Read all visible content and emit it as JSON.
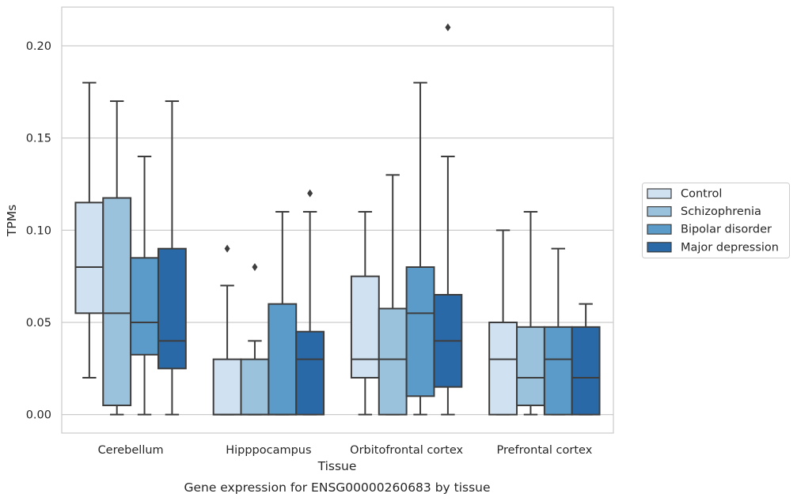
{
  "chart_data": {
    "type": "box",
    "xlabel": "Tissue",
    "ylabel": "TPMs",
    "caption": "Gene expression for ENSG00000260683 by tissue",
    "ylim": [
      -0.01,
      0.221
    ],
    "yticks": [
      "0.00",
      "0.05",
      "0.10",
      "0.15",
      "0.20"
    ],
    "ytick_values": [
      0.0,
      0.05,
      0.1,
      0.15,
      0.2
    ],
    "categories": [
      "Cerebellum",
      "Hipppocampus",
      "Orbitofrontal cortex",
      "Prefrontal cortex"
    ],
    "grid": true,
    "legend_position": "right",
    "series": [
      {
        "name": "Control",
        "color": "#d0e1f2",
        "boxes": [
          {
            "whislo": 0.02,
            "q1": 0.055,
            "med": 0.08,
            "q3": 0.115,
            "whishi": 0.18,
            "fliers": []
          },
          {
            "whislo": 0.0,
            "q1": 0.0,
            "med": 0.0,
            "q3": 0.03,
            "whishi": 0.07,
            "fliers": [
              0.09
            ]
          },
          {
            "whislo": 0.0,
            "q1": 0.02,
            "med": 0.03,
            "q3": 0.075,
            "whishi": 0.11,
            "fliers": []
          },
          {
            "whislo": 0.0,
            "q1": 0.0,
            "med": 0.03,
            "q3": 0.05,
            "whishi": 0.1,
            "fliers": []
          }
        ]
      },
      {
        "name": "Schizophrenia",
        "color": "#9ac2dd",
        "boxes": [
          {
            "whislo": 0.0,
            "q1": 0.005,
            "med": 0.055,
            "q3": 0.1175,
            "whishi": 0.17,
            "fliers": []
          },
          {
            "whislo": 0.0,
            "q1": 0.0,
            "med": 0.0,
            "q3": 0.03,
            "whishi": 0.04,
            "fliers": [
              0.08
            ]
          },
          {
            "whislo": 0.0,
            "q1": 0.0,
            "med": 0.03,
            "q3": 0.0575,
            "whishi": 0.13,
            "fliers": []
          },
          {
            "whislo": 0.0,
            "q1": 0.005,
            "med": 0.02,
            "q3": 0.0475,
            "whishi": 0.11,
            "fliers": []
          }
        ]
      },
      {
        "name": "Bipolar disorder",
        "color": "#5a9bc9",
        "boxes": [
          {
            "whislo": 0.0,
            "q1": 0.0325,
            "med": 0.05,
            "q3": 0.085,
            "whishi": 0.14,
            "fliers": []
          },
          {
            "whislo": 0.0,
            "q1": 0.0,
            "med": 0.0,
            "q3": 0.06,
            "whishi": 0.11,
            "fliers": []
          },
          {
            "whislo": 0.0,
            "q1": 0.01,
            "med": 0.055,
            "q3": 0.08,
            "whishi": 0.18,
            "fliers": []
          },
          {
            "whislo": 0.0,
            "q1": 0.0,
            "med": 0.03,
            "q3": 0.0475,
            "whishi": 0.09,
            "fliers": []
          }
        ]
      },
      {
        "name": "Major depression",
        "color": "#2a69a8",
        "boxes": [
          {
            "whislo": 0.0,
            "q1": 0.025,
            "med": 0.04,
            "q3": 0.09,
            "whishi": 0.17,
            "fliers": []
          },
          {
            "whislo": 0.0,
            "q1": 0.0,
            "med": 0.03,
            "q3": 0.045,
            "whishi": 0.11,
            "fliers": [
              0.12
            ]
          },
          {
            "whislo": 0.0,
            "q1": 0.015,
            "med": 0.04,
            "q3": 0.065,
            "whishi": 0.14,
            "fliers": [
              0.21
            ]
          },
          {
            "whislo": 0.0,
            "q1": 0.0,
            "med": 0.02,
            "q3": 0.0475,
            "whishi": 0.06,
            "fliers": []
          }
        ]
      }
    ]
  }
}
